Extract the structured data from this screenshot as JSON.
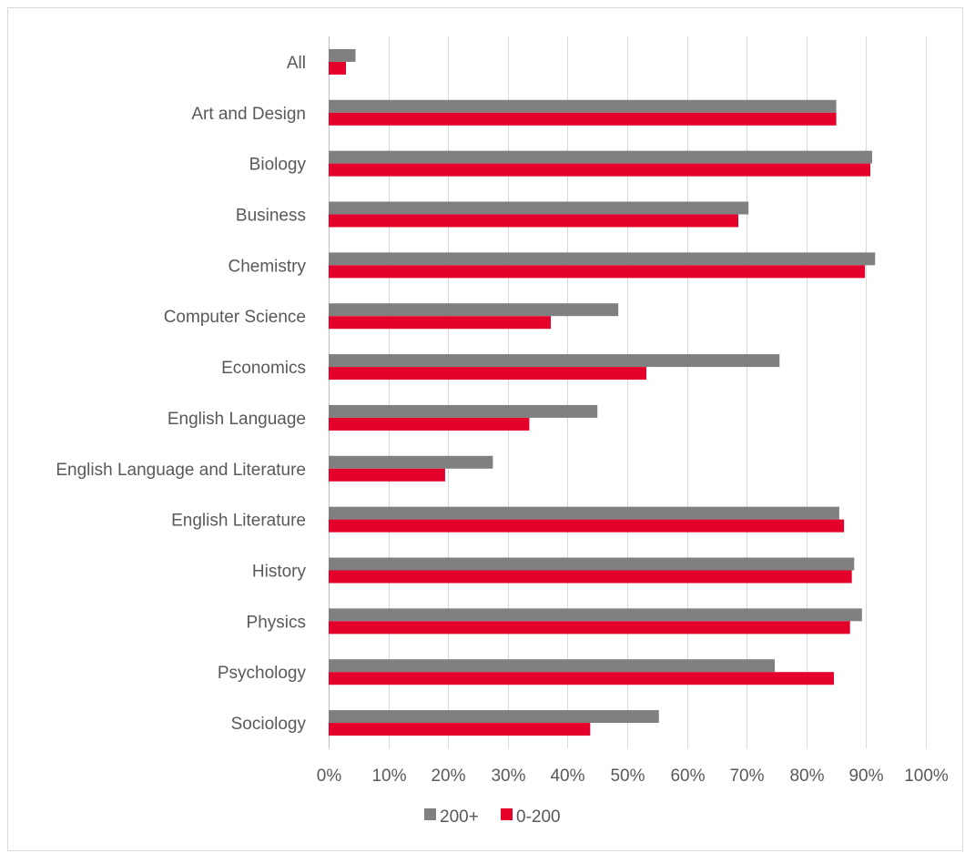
{
  "chart_data": {
    "type": "bar",
    "orientation": "horizontal",
    "title": "",
    "xlabel": "",
    "ylabel": "",
    "categories": [
      "All",
      "Art and Design",
      "Biology",
      "Business",
      "Chemistry",
      "Computer Science",
      "Economics",
      "English Language",
      "English Language and Literature",
      "English Literature",
      "History",
      "Physics",
      "Psychology",
      "Sociology"
    ],
    "series": [
      {
        "name": "200+",
        "color": "#808080",
        "values": [
          0.045,
          0.85,
          0.91,
          0.703,
          0.915,
          0.485,
          0.755,
          0.45,
          0.275,
          0.855,
          0.88,
          0.893,
          0.747,
          0.553
        ]
      },
      {
        "name": "0-200",
        "color": "#e4002b",
        "values": [
          0.029,
          0.85,
          0.907,
          0.686,
          0.898,
          0.372,
          0.532,
          0.336,
          0.195,
          0.863,
          0.876,
          0.873,
          0.846,
          0.438
        ]
      }
    ],
    "xlim": [
      0,
      1
    ],
    "xticks": [
      "0%",
      "10%",
      "20%",
      "30%",
      "40%",
      "50%",
      "60%",
      "70%",
      "80%",
      "90%",
      "100%"
    ],
    "grid": "vertical",
    "legend": {
      "position": "bottom",
      "entries": [
        "200+",
        "0-200"
      ]
    }
  }
}
